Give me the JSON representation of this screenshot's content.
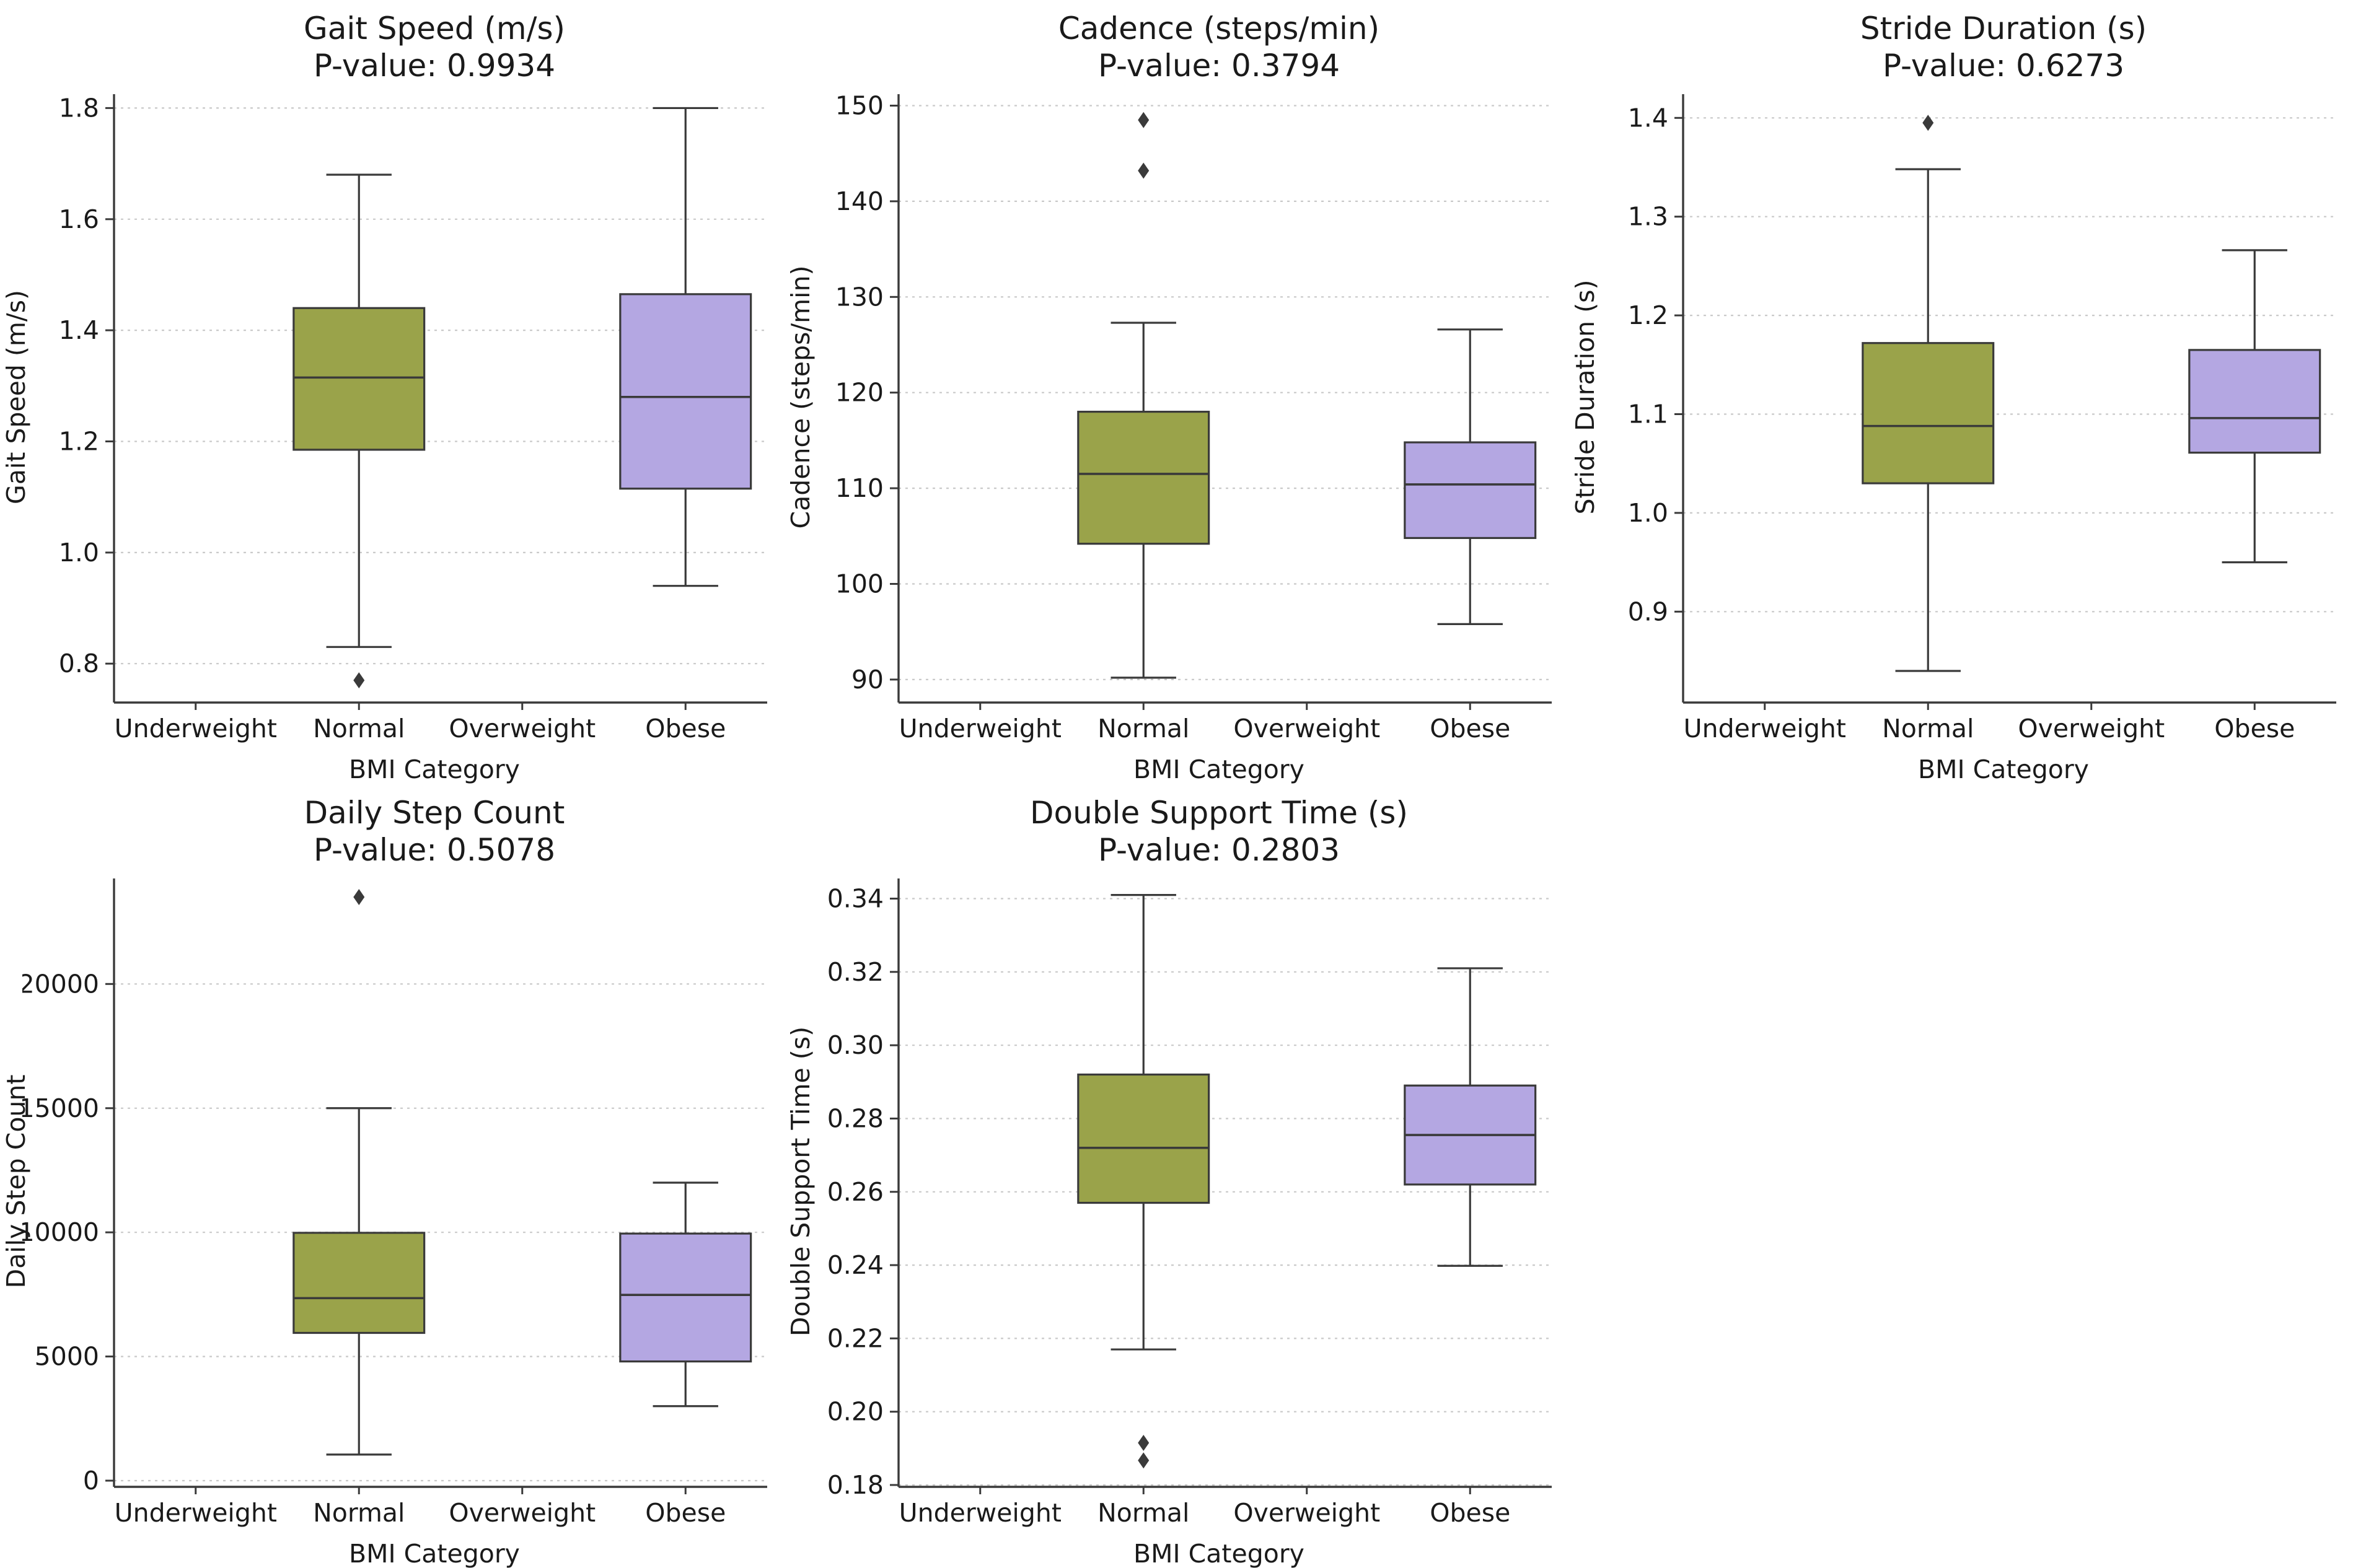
{
  "figure": {
    "background": "#ffffff",
    "line_color": "#3a3a3a",
    "grid_color": "#c9c9c9",
    "text_color": "#1a1a1a",
    "box_colors": {
      "normal": "#9aa34a",
      "obese": "#b4a7e2"
    },
    "categories": [
      "Underweight",
      "Normal",
      "Overweight",
      "Obese"
    ],
    "xlabel": "BMI Category"
  },
  "chart_data": [
    {
      "type": "box",
      "title": "Gait Speed (m/s)",
      "subtitle": "P-value: 0.9934",
      "p_value": 0.9934,
      "xlabel": "BMI Category",
      "ylabel": "Gait Speed (m/s)",
      "categories": [
        "Underweight",
        "Normal",
        "Overweight",
        "Obese"
      ],
      "ylim": [
        0.73,
        1.825
      ],
      "yticks": [
        0.8,
        1.0,
        1.2,
        1.4,
        1.6,
        1.8
      ],
      "ytick_labels": [
        "0.8",
        "1.0",
        "1.2",
        "1.4",
        "1.6",
        "1.8"
      ],
      "grid": true,
      "legend_position": "none",
      "boxes": [
        {
          "category": "Normal",
          "category_index": 1,
          "color": "#9aa34a",
          "whisker_low": 0.83,
          "q1": 1.185,
          "median": 1.315,
          "q3": 1.44,
          "whisker_high": 1.68,
          "outliers": [
            0.77
          ]
        },
        {
          "category": "Obese",
          "category_index": 3,
          "color": "#b4a7e2",
          "whisker_low": 0.94,
          "q1": 1.115,
          "median": 1.28,
          "q3": 1.465,
          "whisker_high": 1.8,
          "outliers": []
        }
      ]
    },
    {
      "type": "box",
      "title": "Cadence (steps/min)",
      "subtitle": "P-value: 0.3794",
      "p_value": 0.3794,
      "xlabel": "BMI Category",
      "ylabel": "Cadence (steps/min)",
      "categories": [
        "Underweight",
        "Normal",
        "Overweight",
        "Obese"
      ],
      "ylim": [
        87.6,
        151.2
      ],
      "yticks": [
        90,
        100,
        110,
        120,
        130,
        140,
        150
      ],
      "ytick_labels": [
        "90",
        "100",
        "110",
        "120",
        "130",
        "140",
        "150"
      ],
      "grid": true,
      "legend_position": "none",
      "boxes": [
        {
          "category": "Normal",
          "category_index": 1,
          "color": "#9aa34a",
          "whisker_low": 90.2,
          "q1": 104.2,
          "median": 111.5,
          "q3": 118,
          "whisker_high": 127.3,
          "outliers": [
            148.5,
            143.2
          ]
        },
        {
          "category": "Obese",
          "category_index": 3,
          "color": "#b4a7e2",
          "whisker_low": 95.8,
          "q1": 104.8,
          "median": 110.4,
          "q3": 114.8,
          "whisker_high": 126.6,
          "outliers": []
        }
      ]
    },
    {
      "type": "box",
      "title": "Stride Duration (s)",
      "subtitle": "P-value: 0.6273",
      "p_value": 0.6273,
      "xlabel": "BMI Category",
      "ylabel": "Stride Duration (s)",
      "categories": [
        "Underweight",
        "Normal",
        "Overweight",
        "Obese"
      ],
      "ylim": [
        0.808,
        1.424
      ],
      "yticks": [
        0.9,
        1.0,
        1.1,
        1.2,
        1.3,
        1.4
      ],
      "ytick_labels": [
        "0.9",
        "1.0",
        "1.1",
        "1.2",
        "1.3",
        "1.4"
      ],
      "grid": true,
      "legend_position": "none",
      "boxes": [
        {
          "category": "Normal",
          "category_index": 1,
          "color": "#9aa34a",
          "whisker_low": 0.84,
          "q1": 1.03,
          "median": 1.088,
          "q3": 1.172,
          "whisker_high": 1.348,
          "outliers": [
            1.395
          ]
        },
        {
          "category": "Obese",
          "category_index": 3,
          "color": "#b4a7e2",
          "whisker_low": 0.95,
          "q1": 1.061,
          "median": 1.096,
          "q3": 1.165,
          "whisker_high": 1.266,
          "outliers": []
        }
      ]
    },
    {
      "type": "box",
      "title": "Daily Step Count",
      "subtitle": "P-value: 0.5078",
      "p_value": 0.5078,
      "xlabel": "BMI Category",
      "ylabel": "Daily Step Count",
      "categories": [
        "Underweight",
        "Normal",
        "Overweight",
        "Obese"
      ],
      "ylim": [
        -250,
        24250
      ],
      "yticks": [
        0,
        5000,
        10000,
        15000,
        20000
      ],
      "ytick_labels": [
        "0",
        "5000",
        "10000",
        "15000",
        "20000"
      ],
      "grid": true,
      "legend_position": "none",
      "boxes": [
        {
          "category": "Normal",
          "category_index": 1,
          "color": "#9aa34a",
          "whisker_low": 1050,
          "q1": 5950,
          "median": 7350,
          "q3": 9980,
          "whisker_high": 15000,
          "outliers": [
            23500
          ]
        },
        {
          "category": "Obese",
          "category_index": 3,
          "color": "#b4a7e2",
          "whisker_low": 3000,
          "q1": 4800,
          "median": 7480,
          "q3": 9950,
          "whisker_high": 12000,
          "outliers": []
        }
      ]
    },
    {
      "type": "box",
      "title": "Double Support Time (s)",
      "subtitle": "P-value: 0.2803",
      "p_value": 0.2803,
      "xlabel": "BMI Category",
      "ylabel": "Double Support Time (s)",
      "categories": [
        "Underweight",
        "Normal",
        "Overweight",
        "Obese"
      ],
      "ylim": [
        0.1795,
        0.3455
      ],
      "yticks": [
        0.18,
        0.2,
        0.22,
        0.24,
        0.26,
        0.28,
        0.3,
        0.32,
        0.34
      ],
      "ytick_labels": [
        "0.18",
        "0.20",
        "0.22",
        "0.24",
        "0.26",
        "0.28",
        "0.30",
        "0.32",
        "0.34"
      ],
      "grid": true,
      "legend_position": "none",
      "boxes": [
        {
          "category": "Normal",
          "category_index": 1,
          "color": "#9aa34a",
          "whisker_low": 0.217,
          "q1": 0.257,
          "median": 0.272,
          "q3": 0.292,
          "whisker_high": 0.341,
          "outliers": [
            0.1915,
            0.1867
          ]
        },
        {
          "category": "Obese",
          "category_index": 3,
          "color": "#b4a7e2",
          "whisker_low": 0.2398,
          "q1": 0.262,
          "median": 0.2755,
          "q3": 0.289,
          "whisker_high": 0.321,
          "outliers": []
        }
      ]
    }
  ]
}
